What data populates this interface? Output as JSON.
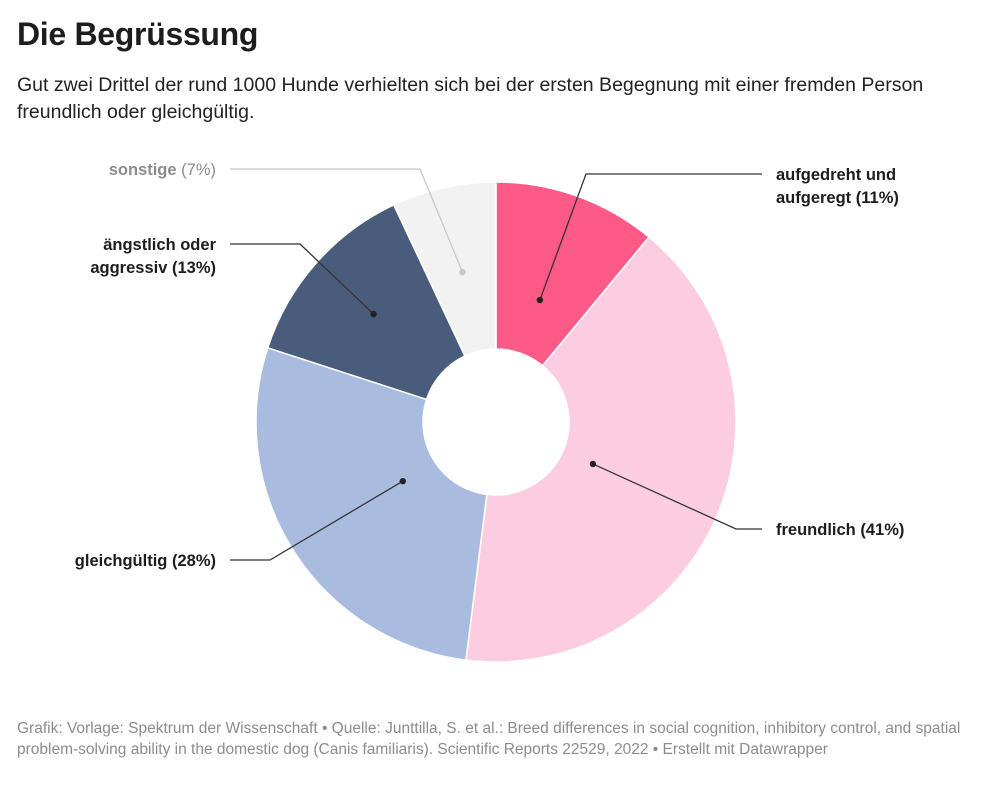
{
  "header": {
    "title": "Die Begrüssung",
    "subtitle": "Gut zwei Drittel der rund 1000 Hunde verhielten sich bei der ersten Begegnung mit einer fremden Person freundlich oder gleichgültig."
  },
  "chart_data": {
    "type": "pie",
    "variant": "donut",
    "unit": "%",
    "slices": [
      {
        "label": "aufgedreht und aufgeregt",
        "label_lines": [
          "aufgedreht und",
          "aufgeregt"
        ],
        "pct_text": "(11%)",
        "value": 11,
        "color": "#fd5a87"
      },
      {
        "label": "freundlich",
        "label_lines": [
          "freundlich"
        ],
        "pct_text": "(41%)",
        "value": 41,
        "color": "#fccce0"
      },
      {
        "label": "gleichgültig",
        "label_lines": [
          "gleichgültig"
        ],
        "pct_text": "(28%)",
        "value": 28,
        "color": "#a9bce0"
      },
      {
        "label": "ängstlich oder aggressiv",
        "label_lines": [
          "ängstlich oder",
          "aggressiv"
        ],
        "pct_text": "(13%)",
        "value": 13,
        "color": "#4a5c7c"
      },
      {
        "label": "sonstige",
        "label_lines": [
          "sonstige"
        ],
        "pct_text": "(7%)",
        "value": 7,
        "color": "#f2f2f2",
        "muted": true
      }
    ]
  },
  "footer": {
    "source": "Grafik: Vorlage: Spektrum der Wissenschaft • Quelle: Junttilla, S. et al.: Breed differences in social cognition, inhibitory control, and spatial problem-solving ability in the domestic dog (Canis familiaris). Scientific Reports 22529, 2022 • Erstellt mit Datawrapper"
  }
}
